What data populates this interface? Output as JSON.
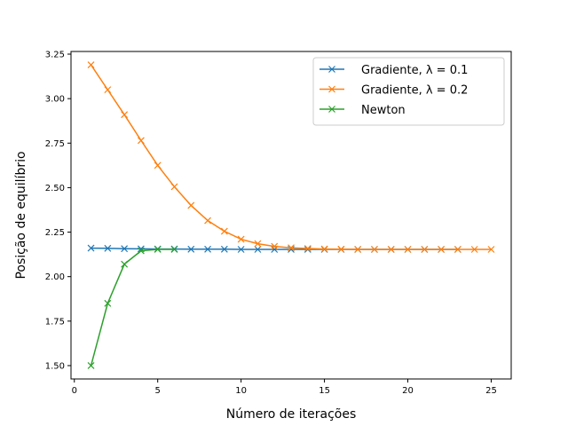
{
  "chart_data": {
    "type": "line",
    "xlabel": "Número de iterações",
    "ylabel": "Posição de equilíbrio",
    "xlim": [
      -0.2,
      26.2
    ],
    "ylim": [
      1.425,
      3.265
    ],
    "xticks": [
      0,
      5,
      10,
      15,
      20,
      25
    ],
    "yticks": [
      1.5,
      1.75,
      2.0,
      2.25,
      2.5,
      2.75,
      3.0,
      3.25
    ],
    "grid": false,
    "legend_position": "top-right",
    "marker": "x",
    "series": [
      {
        "name": "Gradiente, λ = 0.1",
        "color": "#1f77b4",
        "x": [
          1,
          2,
          3,
          4,
          5,
          6,
          7,
          8,
          9,
          10,
          11,
          12,
          13,
          14,
          15,
          16,
          17,
          18,
          19,
          20,
          21,
          22,
          23
        ],
        "y": [
          2.16,
          2.159,
          2.157,
          2.156,
          2.155,
          2.155,
          2.154,
          2.154,
          2.154,
          2.153,
          2.153,
          2.153,
          2.153,
          2.153,
          2.153,
          2.153,
          2.153,
          2.153,
          2.153,
          2.153,
          2.153,
          2.153,
          2.153
        ]
      },
      {
        "name": "Gradiente, λ = 0.2",
        "color": "#ff7f0e",
        "x": [
          1,
          2,
          3,
          4,
          5,
          6,
          7,
          8,
          9,
          10,
          11,
          12,
          13,
          14,
          15,
          16,
          17,
          18,
          19,
          20,
          21,
          22,
          23,
          24,
          25
        ],
        "y": [
          3.19,
          3.05,
          2.91,
          2.765,
          2.625,
          2.505,
          2.4,
          2.315,
          2.255,
          2.21,
          2.185,
          2.17,
          2.162,
          2.158,
          2.155,
          2.154,
          2.153,
          2.153,
          2.153,
          2.153,
          2.153,
          2.153,
          2.153,
          2.153,
          2.153
        ]
      },
      {
        "name": "Newton",
        "color": "#2ca02c",
        "x": [
          1,
          2,
          3,
          4,
          5,
          6
        ],
        "y": [
          1.5,
          1.85,
          2.07,
          2.145,
          2.153,
          2.153
        ]
      }
    ]
  }
}
